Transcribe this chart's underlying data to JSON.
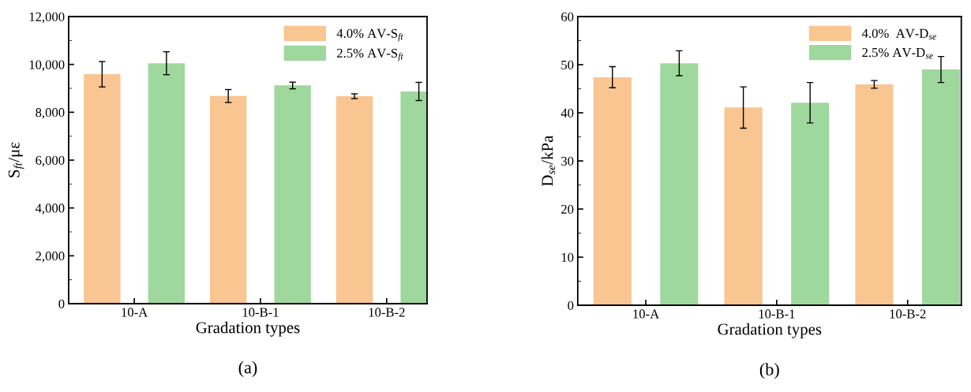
{
  "chart_data": [
    {
      "type": "bar",
      "categories": [
        "10-A",
        "10-B-1",
        "10-B-2"
      ],
      "xlabel": "Gradation types",
      "ylabel": "S$_{ft}$/με",
      "series": [
        {
          "name": "4.0% AV-S$_{ft}$",
          "color": "#f9c591",
          "values": [
            9590,
            8680,
            8670
          ],
          "errors": [
            530,
            270,
            100
          ]
        },
        {
          "name": "2.5% AV-S$_{ft}$",
          "color": "#9fd89d",
          "values": [
            10050,
            9120,
            8870
          ],
          "errors": [
            480,
            140,
            380
          ]
        }
      ],
      "ylim": [
        0,
        12000
      ],
      "yticks": [
        0,
        {
          "value": 2000,
          "label": "2,000"
        },
        {
          "value": 4000,
          "label": "4,000"
        },
        {
          "value": 6000,
          "label": "6,000"
        },
        {
          "value": 8000,
          "label": "8,000"
        },
        {
          "value": 10000,
          "label": "10,000"
        },
        {
          "value": 12000,
          "label": "12,000"
        }
      ],
      "legend": "top right",
      "grid": false,
      "annotations": [
        "(a)"
      ]
    },
    {
      "type": "bar",
      "categories": [
        "10-A",
        "10-B-1",
        "10-B-2"
      ],
      "xlabel": "Gradation types",
      "ylabel": "D$_{se}$/kPa",
      "series": [
        {
          "name": "4.0%  AV-D$_{se}$",
          "color": "#f9c591",
          "values": [
            47.4,
            41.1,
            45.9
          ],
          "errors": [
            2.2,
            4.3,
            0.8
          ]
        },
        {
          "name": "2.5% AV-D$_{se}$",
          "color": "#9fd89d",
          "values": [
            50.3,
            42.1,
            49.0
          ],
          "errors": [
            2.6,
            4.2,
            2.7
          ]
        }
      ],
      "ylim": [
        0,
        60
      ],
      "yticks": [
        0,
        10,
        20,
        30,
        40,
        50,
        60
      ],
      "legend": "top right",
      "grid": false,
      "annotations": [
        "(b)"
      ]
    }
  ]
}
